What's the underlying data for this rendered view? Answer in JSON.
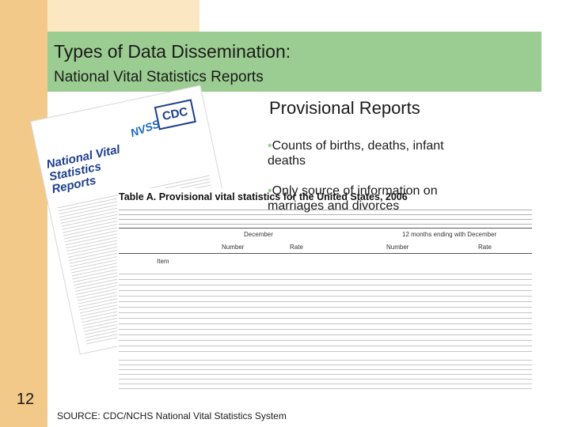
{
  "slide": {
    "title": "Types of Data Dissemination:",
    "subtitle": "National Vital Statistics Reports",
    "number": "12",
    "source": "SOURCE: CDC/NCHS National Vital Statistics System"
  },
  "content": {
    "heading": "Provisional Reports",
    "bullets": [
      {
        "marker": "•",
        "text": "Counts of births, deaths, infant\ndeaths"
      },
      {
        "marker": "•",
        "text": "Only source of information on\nmarriages and divorces"
      }
    ]
  },
  "report_image": {
    "cover_series": "National Vital Statistics Reports",
    "cover_badge": "NVSS",
    "logo_text": "CDC",
    "table_title": "Table A. Provisional vital statistics for the United States, 2006",
    "column_groups": [
      "December",
      "12 months ending with December"
    ],
    "column_subgroups": [
      "Number",
      "Rate",
      "Number",
      "Rate"
    ],
    "item_label": "Item"
  },
  "colors": {
    "title_bar": "#9bcc91",
    "left_band": "#f3c98a",
    "top_band": "#fbe7c2"
  }
}
